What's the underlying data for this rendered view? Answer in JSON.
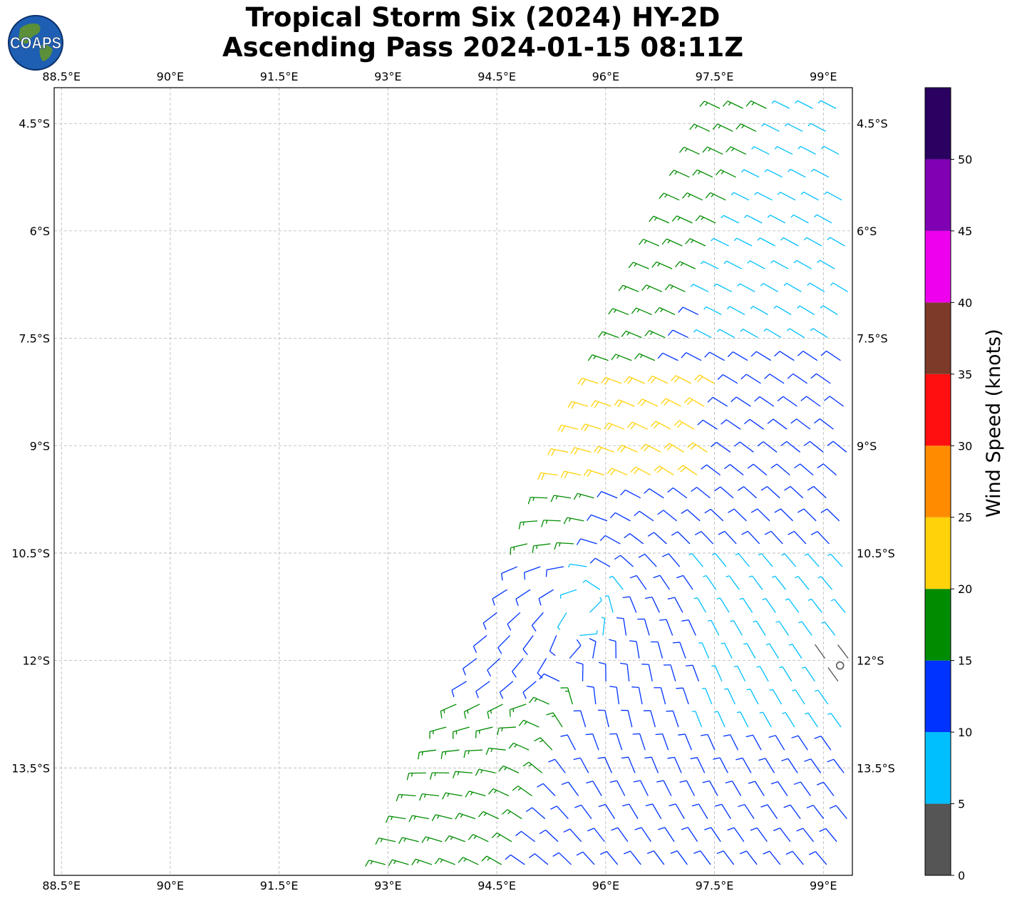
{
  "title": {
    "line1": "Tropical Storm Six (2024) HY-2D",
    "line2": "Ascending Pass 2024-01-15 08:11Z"
  },
  "logo": {
    "text": "COAPS",
    "icon": "globe-icon"
  },
  "map": {
    "lon_ticks": [
      "88.5°E",
      "90°E",
      "91.5°E",
      "93°E",
      "94.5°E",
      "96°E",
      "97.5°E",
      "99°E"
    ],
    "lat_ticks": [
      "4.5°S",
      "6°S",
      "7.5°S",
      "9°S",
      "10.5°S",
      "12°S",
      "13.5°S"
    ],
    "lon_range": [
      88.4,
      99.4
    ],
    "lat_range": [
      -15.0,
      -4.0
    ],
    "storm_center": {
      "lon": 99.23,
      "lat": -12.07,
      "icon": "storm-center-circle-icon"
    }
  },
  "colorbar": {
    "label": "Wind Speed (knots)",
    "tick_labels": [
      "0",
      "5",
      "10",
      "15",
      "20",
      "25",
      "30",
      "35",
      "40",
      "45",
      "50"
    ],
    "bins": [
      {
        "min": 0,
        "max": 5,
        "color": "#555555"
      },
      {
        "min": 5,
        "max": 10,
        "color": "#00bfff"
      },
      {
        "min": 10,
        "max": 15,
        "color": "#0033ff"
      },
      {
        "min": 15,
        "max": 20,
        "color": "#008c00"
      },
      {
        "min": 20,
        "max": 25,
        "color": "#ffd20a"
      },
      {
        "min": 25,
        "max": 30,
        "color": "#ff8c00"
      },
      {
        "min": 30,
        "max": 35,
        "color": "#ff0f0f"
      },
      {
        "min": 35,
        "max": 40,
        "color": "#7d3a28"
      },
      {
        "min": 40,
        "max": 45,
        "color": "#ee00ee"
      },
      {
        "min": 45,
        "max": 50,
        "color": "#8000b3"
      },
      {
        "min": 50,
        "max": 55,
        "color": "#2a0060"
      }
    ]
  },
  "chart_data": {
    "type": "wind-barbs",
    "swath": {
      "left_edge": [
        {
          "lon": 92.8,
          "lat": -15.0
        },
        {
          "lon": 97.6,
          "lat": -4.0
        }
      ],
      "right_edge_lon": 99.4
    },
    "circulation_center": {
      "lon": 95.8,
      "lat": -11.2
    },
    "speed_zones_knots": [
      {
        "region": "north-east of swath",
        "range": [
          5,
          10
        ]
      },
      {
        "region": "north central",
        "range": [
          10,
          15
        ]
      },
      {
        "region": "north-west edge",
        "range": [
          15,
          20
        ]
      },
      {
        "region": "around 95-97E, 8-9.5S",
        "range": [
          20,
          25
        ]
      },
      {
        "region": "south-west of swath",
        "range": [
          15,
          20
        ]
      },
      {
        "region": "near storm center",
        "range": [
          0,
          5
        ]
      }
    ]
  }
}
